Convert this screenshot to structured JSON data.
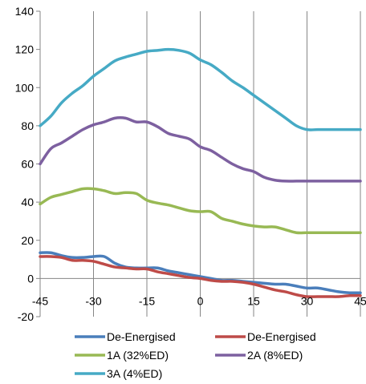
{
  "chart_data": {
    "type": "line",
    "title": "",
    "xlabel": "",
    "ylabel": "",
    "xlim": [
      -45,
      45
    ],
    "ylim": [
      -20,
      140
    ],
    "x_ticks": [
      -45,
      -30,
      -15,
      0,
      15,
      30,
      45
    ],
    "y_ticks": [
      -20,
      0,
      20,
      40,
      60,
      80,
      100,
      120,
      140
    ],
    "x_tick_labels": [
      "-45",
      "-30",
      "-15",
      "0",
      "15",
      "30",
      "45"
    ],
    "y_tick_labels": [
      "-20",
      "0",
      "20",
      "40",
      "60",
      "80",
      "100",
      "120",
      "140"
    ],
    "grid": "vertical",
    "legend_position": "bottom",
    "x": [
      -45,
      -42,
      -39,
      -36,
      -33,
      -30,
      -27,
      -24,
      -21,
      -18,
      -15,
      -12,
      -9,
      -6,
      -3,
      0,
      3,
      6,
      9,
      12,
      15,
      18,
      21,
      24,
      27,
      30,
      33,
      36,
      39,
      42,
      45
    ],
    "series": [
      {
        "name": "De-Energised",
        "color": "#4a7ebb",
        "values": [
          13.5,
          13.5,
          12,
          11,
          11,
          11.5,
          11.5,
          8,
          6,
          5.5,
          5.5,
          5.5,
          4,
          3,
          2,
          1,
          0,
          -1,
          -1,
          -1.5,
          -2,
          -2.5,
          -3,
          -3,
          -4,
          -5,
          -5,
          -6,
          -7,
          -7.5,
          -7.5
        ]
      },
      {
        "name": "De-Energised",
        "color": "#be4b48",
        "values": [
          11.5,
          11.5,
          11,
          9.5,
          9.5,
          9,
          7.5,
          6,
          5.5,
          5,
          5,
          3.5,
          2.5,
          1.5,
          0.5,
          0,
          -1,
          -1.5,
          -1.5,
          -2,
          -3,
          -4.5,
          -6,
          -7,
          -8.5,
          -9.5,
          -9.5,
          -9.5,
          -9.5,
          -9,
          -9
        ]
      },
      {
        "name": "1A (32%ED)",
        "color": "#98b954",
        "values": [
          39,
          42.5,
          44,
          45.5,
          47,
          47,
          46,
          44.5,
          45,
          44.5,
          41,
          39.5,
          38.5,
          37,
          35.5,
          35,
          35,
          31.5,
          30,
          28.5,
          27.5,
          27,
          27,
          25.5,
          24,
          24,
          24,
          24,
          24,
          24,
          24
        ]
      },
      {
        "name": "2A (8%ED)",
        "color": "#7d60a0",
        "values": [
          60,
          68,
          71,
          74.5,
          78,
          80.5,
          82,
          84,
          84,
          82,
          82,
          79.5,
          76,
          74.5,
          73,
          69,
          67,
          63.5,
          60,
          57.5,
          56,
          53,
          51.5,
          51,
          51,
          51,
          51,
          51,
          51,
          51,
          51
        ]
      },
      {
        "name": "3A (4%ED)",
        "color": "#46aac5",
        "values": [
          80,
          85,
          92,
          97,
          101,
          106,
          110,
          114,
          116,
          117.5,
          119,
          119.5,
          120,
          119.5,
          118,
          114.5,
          112,
          108,
          103.5,
          100,
          96,
          92,
          88,
          84,
          80,
          78,
          78,
          78,
          78,
          78,
          78
        ]
      }
    ]
  }
}
